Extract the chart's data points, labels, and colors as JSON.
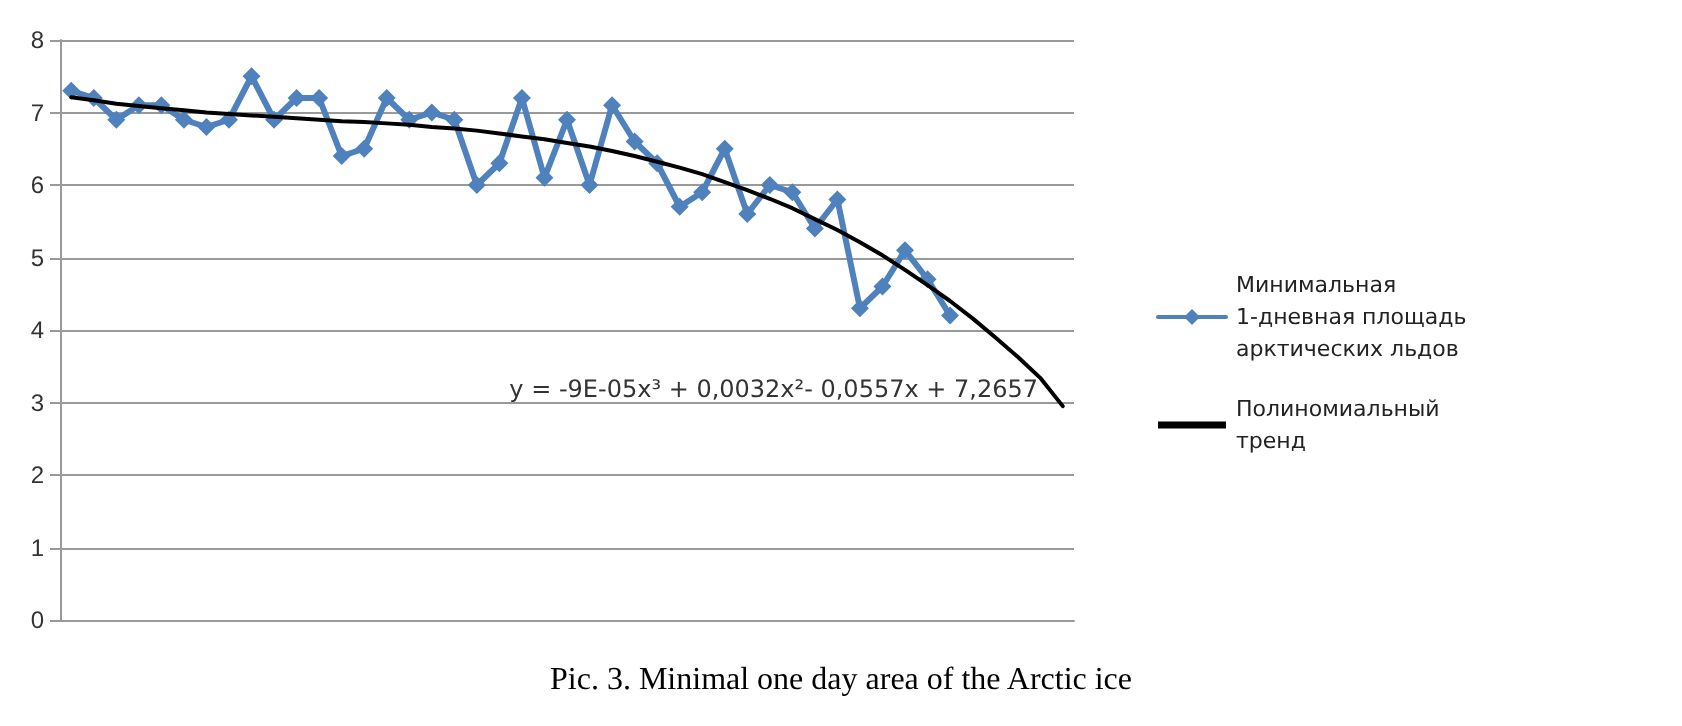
{
  "chart_data": {
    "type": "line",
    "title": "Pic. 3. Minimal one day area of the Arctic ice",
    "categories": [
      null,
      null,
      null,
      null,
      null,
      null,
      null,
      null,
      null,
      null,
      null,
      null,
      null,
      null,
      null,
      null,
      null,
      null,
      null,
      null,
      null,
      null,
      null,
      null,
      null,
      null,
      null,
      null,
      null,
      null,
      null,
      null,
      null,
      null,
      null,
      null,
      null,
      null,
      null,
      null,
      null,
      null,
      null,
      null,
      null
    ],
    "ylim": [
      0,
      8
    ],
    "yticks": [
      0,
      1,
      2,
      3,
      4,
      5,
      6,
      7,
      8
    ],
    "tick_labels": "y",
    "grid": "y",
    "legend": "right",
    "series": [
      {
        "name": "Минимальная 1-дневная площадь арктических льдов",
        "color": "#4f81bd",
        "marker": "diamond",
        "line_style": "solid",
        "values": [
          7.3,
          7.2,
          6.9,
          7.1,
          7.1,
          6.9,
          6.8,
          6.9,
          7.5,
          6.9,
          7.2,
          7.2,
          6.4,
          6.5,
          7.2,
          6.9,
          7.0,
          6.9,
          6.0,
          6.3,
          7.2,
          6.1,
          6.9,
          6.0,
          7.1,
          6.6,
          6.3,
          5.7,
          5.9,
          6.5,
          5.6,
          6.0,
          5.9,
          5.4,
          5.8,
          4.3,
          4.6,
          5.1,
          4.7,
          4.2,
          null,
          null,
          null,
          null,
          null
        ]
      },
      {
        "name": "Полиномиальный тренд",
        "color": "#000000",
        "marker": "none",
        "line_style": "solid",
        "values": [
          7.21,
          7.17,
          7.12,
          7.09,
          7.06,
          7.03,
          7.0,
          6.98,
          6.96,
          6.94,
          6.92,
          6.9,
          6.88,
          6.87,
          6.85,
          6.83,
          6.8,
          6.78,
          6.75,
          6.71,
          6.67,
          6.63,
          6.58,
          6.53,
          6.47,
          6.4,
          6.32,
          6.24,
          6.15,
          6.04,
          5.93,
          5.81,
          5.68,
          5.53,
          5.38,
          5.21,
          5.03,
          4.83,
          4.62,
          4.4,
          4.16,
          3.9,
          3.63,
          3.34,
          2.95
        ]
      }
    ],
    "annotations": [
      "y = -9E-05x³ + 0,0032x²- 0,0557x + 7,2657"
    ]
  }
}
